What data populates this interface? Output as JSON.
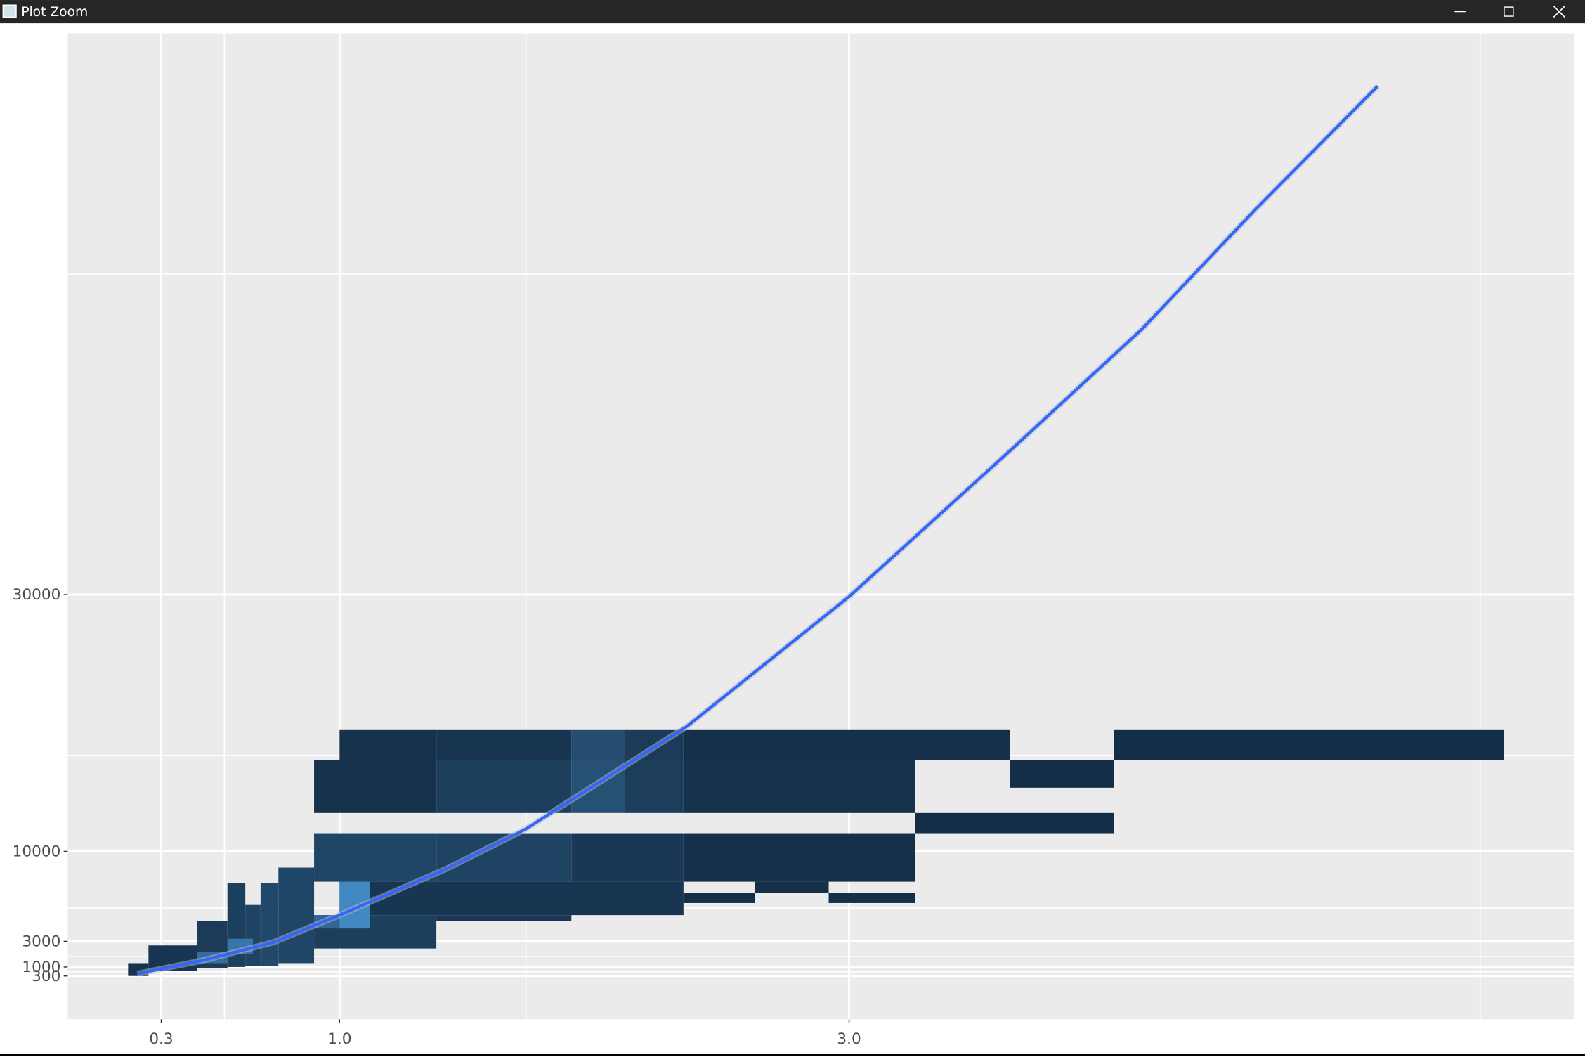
{
  "window_title": "Plot Zoom",
  "chart_data": {
    "type": "bin2d",
    "xlim": [
      -0.067,
      5.845
    ],
    "ylim": [
      -3070,
      73700
    ],
    "xticks": [
      0.3,
      {
        "value": 1,
        "label": "1.0"
      },
      {
        "value": 3,
        "label": "3.0"
      }
    ],
    "yticks": [
      300,
      1000,
      3000,
      10000,
      30000
    ],
    "x_minor_grid": [
      0.548,
      1.732,
      5.477
    ],
    "y_minor_grid": [
      630,
      1810,
      5590,
      17480,
      54960
    ],
    "grid": true,
    "fill_low": "#132b43",
    "fill_high": "#56b1f7",
    "count_max": 100,
    "tiles": [
      {
        "x": [
          1.0,
          1.38
        ],
        "y": [
          17090,
          19450
        ],
        "count": 5
      },
      {
        "x": [
          1.38,
          1.91
        ],
        "y": [
          17090,
          19450
        ],
        "count": 8
      },
      {
        "x": [
          1.91,
          2.12
        ],
        "y": [
          17090,
          19450
        ],
        "count": 25
      },
      {
        "x": [
          2.12,
          2.35
        ],
        "y": [
          17090,
          19450
        ],
        "count": 12
      },
      {
        "x": [
          2.35,
          3.63
        ],
        "y": [
          17090,
          19450
        ],
        "count": 4
      },
      {
        "x": [
          3.63,
          4.04
        ],
        "y": [
          14960,
          17090
        ],
        "count": 2
      },
      {
        "x": [
          4.04,
          5.57
        ],
        "y": [
          17090,
          19450
        ],
        "count": 2
      },
      {
        "x": [
          0.9,
          1.38
        ],
        "y": [
          12990,
          17090
        ],
        "count": 5
      },
      {
        "x": [
          1.38,
          1.91
        ],
        "y": [
          12990,
          17090
        ],
        "count": 15
      },
      {
        "x": [
          1.91,
          2.12
        ],
        "y": [
          12990,
          17090
        ],
        "count": 28
      },
      {
        "x": [
          2.12,
          2.35
        ],
        "y": [
          12990,
          17090
        ],
        "count": 14
      },
      {
        "x": [
          2.35,
          3.26
        ],
        "y": [
          12990,
          17090
        ],
        "count": 5
      },
      {
        "x": [
          3.26,
          4.04
        ],
        "y": [
          11420,
          12990
        ],
        "count": 2
      },
      {
        "x": [
          0.9,
          1.38
        ],
        "y": [
          7640,
          11420
        ],
        "count": 20
      },
      {
        "x": [
          1.38,
          1.91
        ],
        "y": [
          7640,
          11420
        ],
        "count": 18
      },
      {
        "x": [
          1.91,
          2.35
        ],
        "y": [
          7640,
          11420
        ],
        "count": 10
      },
      {
        "x": [
          2.35,
          3.26
        ],
        "y": [
          7640,
          11420
        ],
        "count": 4
      },
      {
        "x": [
          1.0,
          2.35
        ],
        "y": [
          5040,
          7640
        ],
        "count": 8
      },
      {
        "x": [
          2.35,
          2.63
        ],
        "y": [
          5980,
          6770
        ],
        "count": 3
      },
      {
        "x": [
          2.63,
          2.92
        ],
        "y": [
          6770,
          7640
        ],
        "count": 3
      },
      {
        "x": [
          2.92,
          3.26
        ],
        "y": [
          5980,
          6770
        ],
        "count": 3
      },
      {
        "x": [
          0.9,
          1.38
        ],
        "y": [
          2440,
          5040
        ],
        "count": 15
      },
      {
        "x": [
          1.38,
          1.91
        ],
        "y": [
          4570,
          5040
        ],
        "count": 10
      },
      {
        "x": [
          1.0,
          1.12
        ],
        "y": [
          4000,
          7640
        ],
        "count": 70
      },
      {
        "x": [
          0.9,
          1.0
        ],
        "y": [
          4000,
          5040
        ],
        "count": 45
      },
      {
        "x": [
          0.76,
          0.9
        ],
        "y": [
          1300,
          8740
        ],
        "count": 20
      },
      {
        "x": [
          0.69,
          0.76
        ],
        "y": [
          1100,
          7560
        ],
        "count": 22
      },
      {
        "x": [
          0.63,
          0.69
        ],
        "y": [
          1100,
          5830
        ],
        "count": 18
      },
      {
        "x": [
          0.56,
          0.63
        ],
        "y": [
          1000,
          7560
        ],
        "count": 15
      },
      {
        "x": [
          0.56,
          0.66
        ],
        "y": [
          2000,
          3200
        ],
        "count": 55
      },
      {
        "x": [
          0.44,
          0.56
        ],
        "y": [
          900,
          4570
        ],
        "count": 12
      },
      {
        "x": [
          0.44,
          0.56
        ],
        "y": [
          1300,
          2200
        ],
        "count": 50
      },
      {
        "x": [
          0.25,
          0.44
        ],
        "y": [
          700,
          2680
        ],
        "count": 8
      },
      {
        "x": [
          0.17,
          0.25
        ],
        "y": [
          300,
          1300
        ],
        "count": 6
      }
    ],
    "line": {
      "color": "#3366ff",
      "x": [
        0.206,
        0.46,
        0.738,
        1.0,
        1.413,
        1.73,
        2.365,
        3.0,
        3.635,
        4.151,
        4.595,
        5.075
      ],
      "y": [
        472,
        1500,
        2910,
        5040,
        8580,
        11730,
        19760,
        29840,
        41260,
        50700,
        60000,
        69600
      ]
    }
  }
}
